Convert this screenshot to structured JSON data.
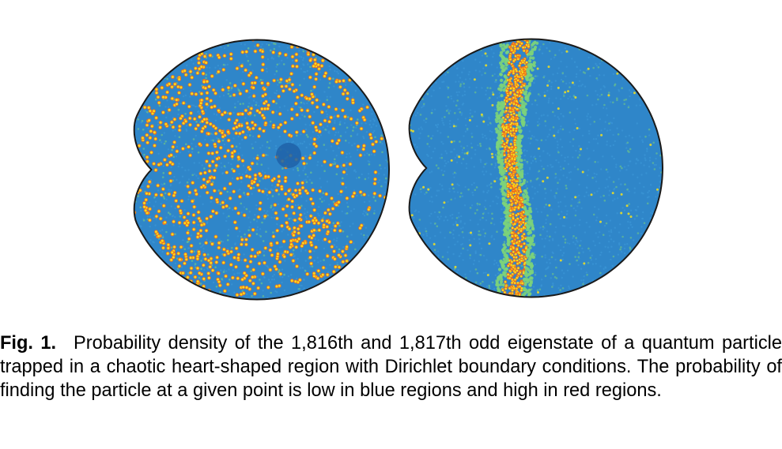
{
  "colors": {
    "background_blue": "#2f86c9",
    "low_density": "#3b96d6",
    "mid_density": "#7cd37a",
    "high_density_yellow": "#f3e01f",
    "high_density_red": "#f26a1b",
    "boundary": "#1a1a1a"
  },
  "figure": {
    "panels": [
      {
        "name": "eigenstate-1816",
        "pattern": "scarred-network"
      },
      {
        "name": "eigenstate-1817",
        "pattern": "vertical-scar"
      }
    ]
  },
  "caption": {
    "label": "Fig. 1.",
    "text": "Probability density of the 1,816th and 1,817th odd eigenstate of a quantum particle trapped in a chaotic heart-shaped region with Dirichlet boundary conditions. The probability of finding the particle at a given point is low in blue regions and high in red regions."
  }
}
